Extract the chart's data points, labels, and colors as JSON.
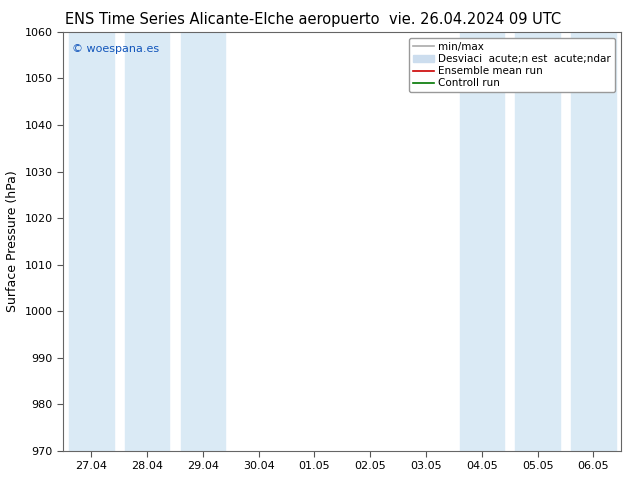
{
  "title_left": "ENS Time Series Alicante-Elche aeropuerto",
  "title_right": "vie. 26.04.2024 09 UTC",
  "ylabel": "Surface Pressure (hPa)",
  "watermark": "© woespana.es",
  "ylim": [
    970,
    1060
  ],
  "yticks": [
    970,
    980,
    990,
    1000,
    1010,
    1020,
    1030,
    1040,
    1050,
    1060
  ],
  "xtick_labels": [
    "27.04",
    "28.04",
    "29.04",
    "30.04",
    "01.05",
    "02.05",
    "03.05",
    "04.05",
    "05.05",
    "06.05"
  ],
  "shaded_indices": [
    0,
    1,
    2,
    7,
    8,
    9
  ],
  "band_color": "#daeaf5",
  "background_color": "#ffffff",
  "plot_bg_color": "#ffffff",
  "legend_line1": "min/max",
  "legend_line2": "Desviaci  acute;n est  acute;ndar",
  "legend_line3": "Ensemble mean run",
  "legend_line4": "Controll run",
  "legend_color1": "#aaaaaa",
  "legend_color2": "#ccddee",
  "legend_color3": "#cc0000",
  "legend_color4": "#007700",
  "title_fontsize": 10.5,
  "tick_fontsize": 8,
  "ylabel_fontsize": 9,
  "legend_fontsize": 7.5
}
